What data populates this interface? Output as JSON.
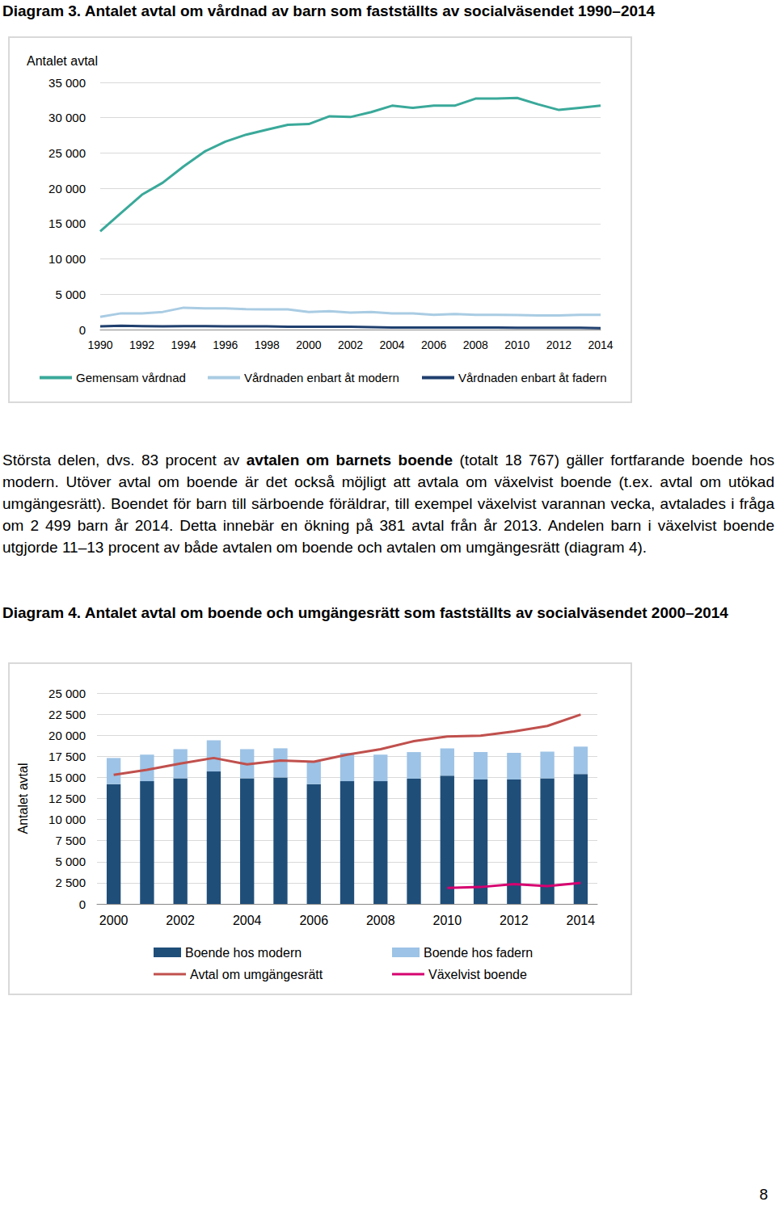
{
  "text": {
    "paragraph": [
      {
        "text": "Största delen, dvs. 83 procent av ",
        "bold": false
      },
      {
        "text": "avtalen om barnets boende",
        "bold": true
      },
      {
        "text": " (totalt 18 767) gäller fortfarande boende hos modern. Utöver avtal om boende är det också möjligt att avtala om växelvist boende (t.ex. avtal om utökad umgängesrätt). Boendet för barn till särboende föräldrar, till exempel växelvist varannan vecka, avtalades i fråga om 2 499 barn år 2014. Detta innebär en ökning på 381 avtal från år 2013. Andelen barn i växelvist boende utgjorde 11–13 procent av både avtalen om boende och avtalen om umgängesrätt (diagram 4).",
        "bold": false
      }
    ],
    "page_number": "8"
  },
  "chart_data": [
    {
      "type": "line",
      "title": "Diagram 3. Antalet avtal om vårdnad av barn som fastställts av socialväsendet 1990–2014",
      "y_label": "Antalet avtal",
      "x": [
        1990,
        1991,
        1992,
        1993,
        1994,
        1995,
        1996,
        1997,
        1998,
        1999,
        2000,
        2001,
        2002,
        2003,
        2004,
        2005,
        2006,
        2007,
        2008,
        2009,
        2010,
        2011,
        2012,
        2013,
        2014
      ],
      "xlim": [
        1990,
        2014
      ],
      "xticks": [
        1990,
        1992,
        1994,
        1996,
        1998,
        2000,
        2002,
        2004,
        2006,
        2008,
        2010,
        2012,
        2014
      ],
      "ylim": [
        0,
        35000
      ],
      "yticks": [
        0,
        {
          "value": 5000,
          "label": "5 000"
        },
        {
          "value": 10000,
          "label": "10 000"
        },
        {
          "value": 15000,
          "label": "15 000"
        },
        {
          "value": 20000,
          "label": "20 000"
        },
        {
          "value": 25000,
          "label": "25 000"
        },
        {
          "value": 30000,
          "label": "30 000"
        },
        {
          "value": 35000,
          "label": "35 000"
        }
      ],
      "grid": true,
      "legend": "bottom",
      "marker": "none",
      "series": [
        {
          "name": "Gemensam vårdnad",
          "color": "#3aa99a",
          "values": [
            13900,
            16500,
            19100,
            20800,
            23100,
            25200,
            26600,
            27600,
            28300,
            29000,
            29100,
            30200,
            30100,
            30800,
            31700,
            31400,
            31700,
            31700,
            32700,
            32700,
            32800,
            31900,
            31100,
            31400,
            31700
          ]
        },
        {
          "name": "Vårdnaden enbart åt modern",
          "color": "#a9cce3",
          "values": [
            1800,
            2300,
            2300,
            2500,
            3100,
            3000,
            3000,
            2900,
            2850,
            2850,
            2500,
            2600,
            2400,
            2500,
            2300,
            2300,
            2100,
            2200,
            2100,
            2100,
            2050,
            2000,
            2000,
            2100,
            2100
          ]
        },
        {
          "name": "Vårdnaden enbart åt fadern",
          "color": "#1f3f6e",
          "values": [
            450,
            550,
            500,
            450,
            500,
            500,
            450,
            450,
            450,
            400,
            400,
            400,
            400,
            350,
            300,
            300,
            300,
            300,
            300,
            300,
            250,
            250,
            250,
            250,
            200
          ]
        }
      ]
    },
    {
      "type": "bar",
      "title": "Diagram 4. Antalet avtal om boende och umgängesrätt som fastställts av socialväsendet 2000–2014",
      "y_label": "Antalet avtal",
      "categories": [
        "2000",
        null,
        "2002",
        null,
        "2004",
        null,
        "2006",
        null,
        "2008",
        null,
        "2010",
        null,
        "2012",
        null,
        "2014"
      ],
      "ylim": [
        0,
        25000
      ],
      "yticks": [
        0,
        {
          "value": 2500,
          "label": "2 500"
        },
        {
          "value": 5000,
          "label": "5 000"
        },
        {
          "value": 7500,
          "label": "7 500"
        },
        {
          "value": 10000,
          "label": "10 000"
        },
        {
          "value": 12500,
          "label": "12 500"
        },
        {
          "value": 15000,
          "label": "15 000"
        },
        {
          "value": 17500,
          "label": "17 500"
        },
        {
          "value": 20000,
          "label": "20 000"
        },
        {
          "value": 22500,
          "label": "22 500"
        },
        {
          "value": 25000,
          "label": "25 000"
        }
      ],
      "grid": true,
      "stacked": true,
      "legend": "bottom",
      "series": [
        {
          "name": "Boende hos modern",
          "type": "bar",
          "color": "#1f4e79",
          "values": [
            14200,
            14550,
            14900,
            15700,
            14900,
            15000,
            14200,
            14550,
            14550,
            14850,
            15200,
            14750,
            14750,
            14900,
            15400
          ]
        },
        {
          "name": "Boende hos fadern",
          "type": "bar",
          "color": "#9dc3e6",
          "values": [
            3100,
            3150,
            3450,
            3700,
            3450,
            3450,
            2700,
            3350,
            3150,
            3150,
            3250,
            3250,
            3150,
            3150,
            3250
          ]
        },
        {
          "name": "Avtal om umgängesrätt",
          "type": "line",
          "color": "#c0504d",
          "marker": "none",
          "values": [
            15300,
            15900,
            16650,
            17300,
            16550,
            17000,
            16850,
            17700,
            18350,
            19300,
            19850,
            19950,
            20450,
            21100,
            22450
          ]
        },
        {
          "name": "Växelvist boende",
          "type": "line",
          "color": "#d6006f",
          "marker": "none",
          "values": [
            null,
            null,
            null,
            null,
            null,
            null,
            null,
            null,
            null,
            null,
            1900,
            2000,
            2350,
            2118,
            2499
          ]
        }
      ]
    }
  ]
}
